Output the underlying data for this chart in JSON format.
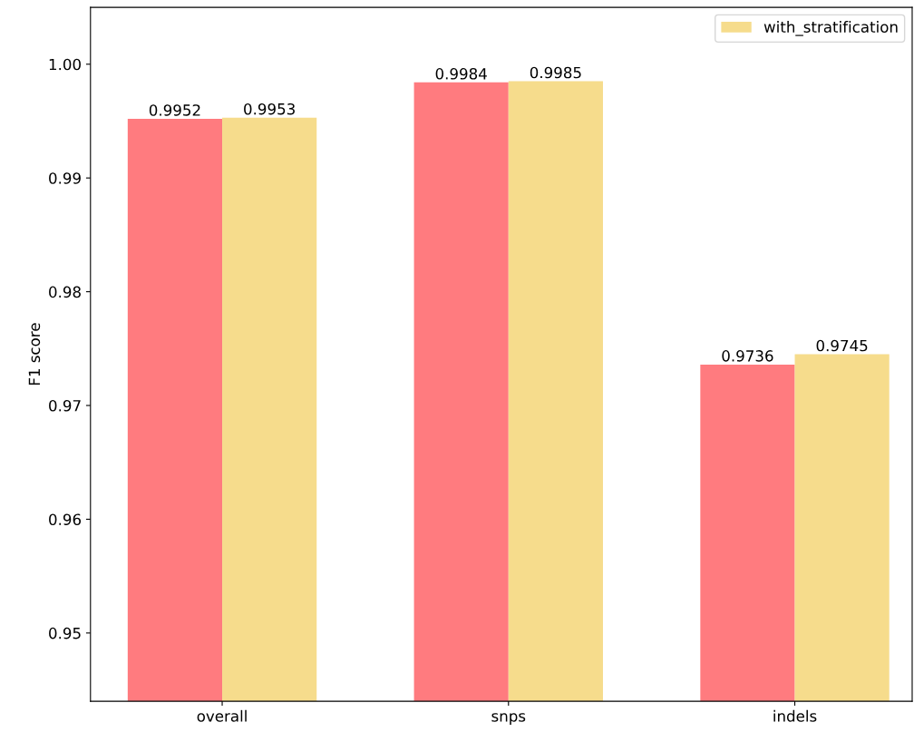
{
  "chart_data": {
    "type": "bar",
    "ylabel": "F1 score",
    "categories": [
      "overall",
      "snps",
      "indels"
    ],
    "series": [
      {
        "color": "#ff7b7f",
        "values": [
          0.9952,
          0.9984,
          0.9736
        ]
      },
      {
        "name": "with_stratification",
        "color": "#f6dc8c",
        "values": [
          0.9953,
          0.9985,
          0.9745
        ]
      }
    ],
    "ylim": [
      0.944,
      1.005
    ],
    "yticks": [
      {
        "value": 0.95,
        "label": "0.95"
      },
      {
        "value": 0.96,
        "label": "0.96"
      },
      {
        "value": 0.97,
        "label": "0.97"
      },
      {
        "value": 0.98,
        "label": "0.98"
      },
      {
        "value": 0.99,
        "label": "0.99"
      },
      {
        "value": 1.0,
        "label": "1.00"
      }
    ],
    "data_labels": true,
    "grid": false,
    "legend": "top right"
  }
}
